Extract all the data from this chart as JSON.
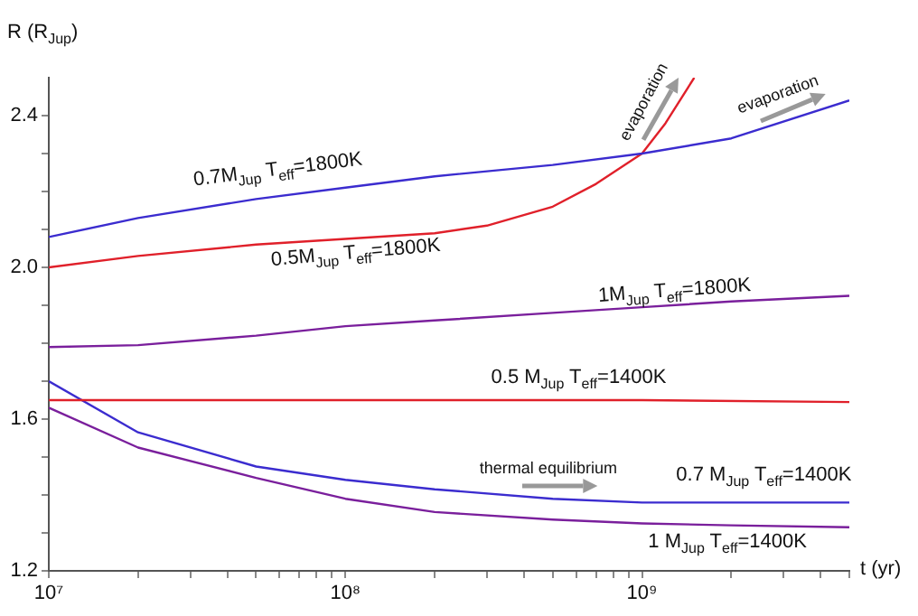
{
  "chart_data": {
    "type": "line",
    "xlabel": "t (yr)",
    "ylabel": "R (R$_{Jup}$)",
    "log": "x",
    "grid": false,
    "legend": false,
    "marker": "none",
    "line_style": "solid",
    "xlim": [
      10000000,
      5000000000
    ],
    "ylim": [
      1.2,
      2.5
    ],
    "xticks": [
      {
        "value": 10000000,
        "label": "10⁷"
      },
      {
        "value": 20000000,
        "label": null
      },
      {
        "value": 30000000,
        "label": null
      },
      {
        "value": 40000000,
        "label": null
      },
      {
        "value": 50000000,
        "label": null
      },
      {
        "value": 60000000,
        "label": null
      },
      {
        "value": 70000000,
        "label": null
      },
      {
        "value": 80000000,
        "label": null
      },
      {
        "value": 90000000,
        "label": null
      },
      {
        "value": 100000000,
        "label": "10⁸"
      },
      {
        "value": 200000000,
        "label": null
      },
      {
        "value": 300000000,
        "label": null
      },
      {
        "value": 400000000,
        "label": null
      },
      {
        "value": 500000000,
        "label": null
      },
      {
        "value": 600000000,
        "label": null
      },
      {
        "value": 700000000,
        "label": null
      },
      {
        "value": 800000000,
        "label": null
      },
      {
        "value": 900000000,
        "label": null
      },
      {
        "value": 1000000000,
        "label": "10⁹"
      },
      {
        "value": 2000000000,
        "label": null
      },
      {
        "value": 3000000000,
        "label": null
      },
      {
        "value": 4000000000,
        "label": null
      },
      {
        "value": 5000000000,
        "label": null
      }
    ],
    "yticks": [
      {
        "value": 1.2,
        "label": "1.2"
      },
      {
        "value": 1.3,
        "label": null
      },
      {
        "value": 1.4,
        "label": null
      },
      {
        "value": 1.5,
        "label": null
      },
      {
        "value": 1.6,
        "label": "1.6"
      },
      {
        "value": 1.7,
        "label": null
      },
      {
        "value": 1.8,
        "label": null
      },
      {
        "value": 1.9,
        "label": null
      },
      {
        "value": 2.0,
        "label": "2.0"
      },
      {
        "value": 2.1,
        "label": null
      },
      {
        "value": 2.2,
        "label": null
      },
      {
        "value": 2.3,
        "label": null
      },
      {
        "value": 2.4,
        "label": "2.4"
      }
    ],
    "series": [
      {
        "name": "0.7M$_{Jup}$ T$_{eff}$=1800K",
        "color": "#3b2ccf",
        "x": [
          10000000,
          20000000,
          50000000,
          100000000,
          200000000,
          500000000,
          1000000000,
          2000000000,
          5000000000
        ],
        "values": [
          2.08,
          2.13,
          2.18,
          2.21,
          2.24,
          2.27,
          2.3,
          2.34,
          2.44
        ]
      },
      {
        "name": "0.5M$_{Jup}$ T$_{eff}$=1800K",
        "color": "#e0202a",
        "x": [
          10000000,
          20000000,
          50000000,
          100000000,
          200000000,
          300000000,
          500000000,
          700000000,
          1000000000,
          1200000000,
          1500000000
        ],
        "values": [
          2.0,
          2.03,
          2.06,
          2.075,
          2.09,
          2.11,
          2.16,
          2.22,
          2.3,
          2.38,
          2.5
        ]
      },
      {
        "name": "1M$_{Jup}$ T$_{eff}$=1800K",
        "color": "#7a1f9c",
        "x": [
          10000000,
          20000000,
          50000000,
          100000000,
          200000000,
          500000000,
          1000000000,
          2000000000,
          5000000000
        ],
        "values": [
          1.79,
          1.795,
          1.82,
          1.845,
          1.86,
          1.88,
          1.895,
          1.91,
          1.925
        ]
      },
      {
        "name": "0.5 M$_{Jup}$ T$_{eff}$=1400K",
        "color": "#e0202a",
        "x": [
          10000000,
          100000000,
          1000000000,
          5000000000
        ],
        "values": [
          1.65,
          1.65,
          1.65,
          1.645
        ]
      },
      {
        "name": "0.7 M$_{Jup}$ T$_{eff}$=1400K",
        "color": "#3b2ccf",
        "x": [
          10000000,
          20000000,
          50000000,
          100000000,
          200000000,
          500000000,
          1000000000,
          2000000000,
          5000000000
        ],
        "values": [
          1.7,
          1.565,
          1.475,
          1.44,
          1.415,
          1.39,
          1.38,
          1.38,
          1.38
        ]
      },
      {
        "name": "1 M$_{Jup}$ T$_{eff}$=1400K",
        "color": "#7a1f9c",
        "x": [
          10000000,
          20000000,
          50000000,
          100000000,
          200000000,
          500000000,
          1000000000,
          2000000000,
          5000000000
        ],
        "values": [
          1.63,
          1.525,
          1.445,
          1.39,
          1.355,
          1.335,
          1.325,
          1.32,
          1.315
        ]
      }
    ],
    "annotations": [
      "evaporation",
      "evaporation",
      "thermal equilibrium"
    ]
  }
}
